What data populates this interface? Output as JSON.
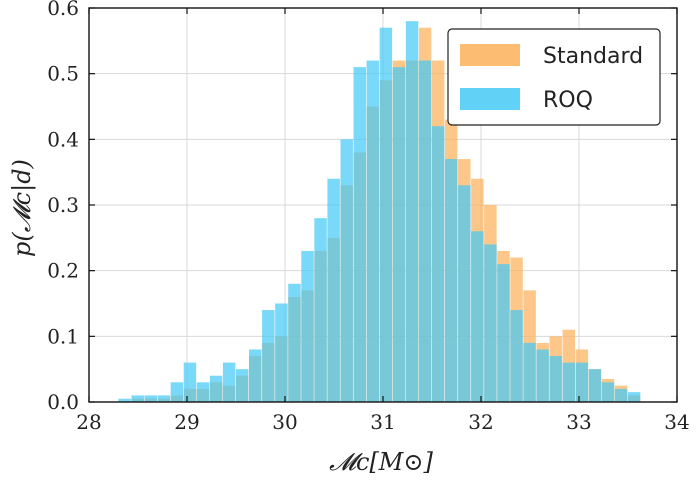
{
  "chart_data": {
    "type": "bar",
    "subtype": "overlaid-histogram",
    "title": "",
    "xlabel": "𝓜c[M⊙]",
    "ylabel": "p(𝓜c|d)",
    "xlim": [
      28,
      34
    ],
    "ylim": [
      0,
      0.6
    ],
    "xticks": [
      "28",
      "29",
      "30",
      "31",
      "32",
      "33",
      "34"
    ],
    "yticks": [
      "0.0",
      "0.1",
      "0.2",
      "0.3",
      "0.4",
      "0.5",
      "0.6"
    ],
    "grid": true,
    "legend_position": "top-right",
    "colors": {
      "standard": "#fbb15a",
      "roq": "#47c9f5",
      "overlap": "#6fb3a8"
    },
    "series": [
      {
        "name": "Standard",
        "bin_edges_start": 28.3,
        "bin_width": 0.1333,
        "values": [
          0.0,
          0.005,
          0.005,
          0.005,
          0.01,
          0.02,
          0.02,
          0.03,
          0.025,
          0.04,
          0.07,
          0.09,
          0.1,
          0.16,
          0.17,
          0.23,
          0.25,
          0.33,
          0.38,
          0.45,
          0.49,
          0.52,
          0.52,
          0.57,
          0.52,
          0.43,
          0.37,
          0.34,
          0.3,
          0.23,
          0.22,
          0.17,
          0.09,
          0.1,
          0.11,
          0.08,
          0.05,
          0.035,
          0.025,
          0.01,
          0.0
        ]
      },
      {
        "name": "ROQ",
        "bin_edges_start": 28.3,
        "bin_width": 0.1333,
        "values": [
          0.005,
          0.01,
          0.01,
          0.01,
          0.03,
          0.06,
          0.03,
          0.04,
          0.06,
          0.05,
          0.08,
          0.14,
          0.15,
          0.18,
          0.23,
          0.28,
          0.34,
          0.4,
          0.51,
          0.52,
          0.57,
          0.51,
          0.58,
          0.52,
          0.42,
          0.37,
          0.33,
          0.26,
          0.24,
          0.21,
          0.14,
          0.09,
          0.08,
          0.07,
          0.06,
          0.06,
          0.05,
          0.03,
          0.02,
          0.015,
          0.0
        ]
      }
    ]
  }
}
